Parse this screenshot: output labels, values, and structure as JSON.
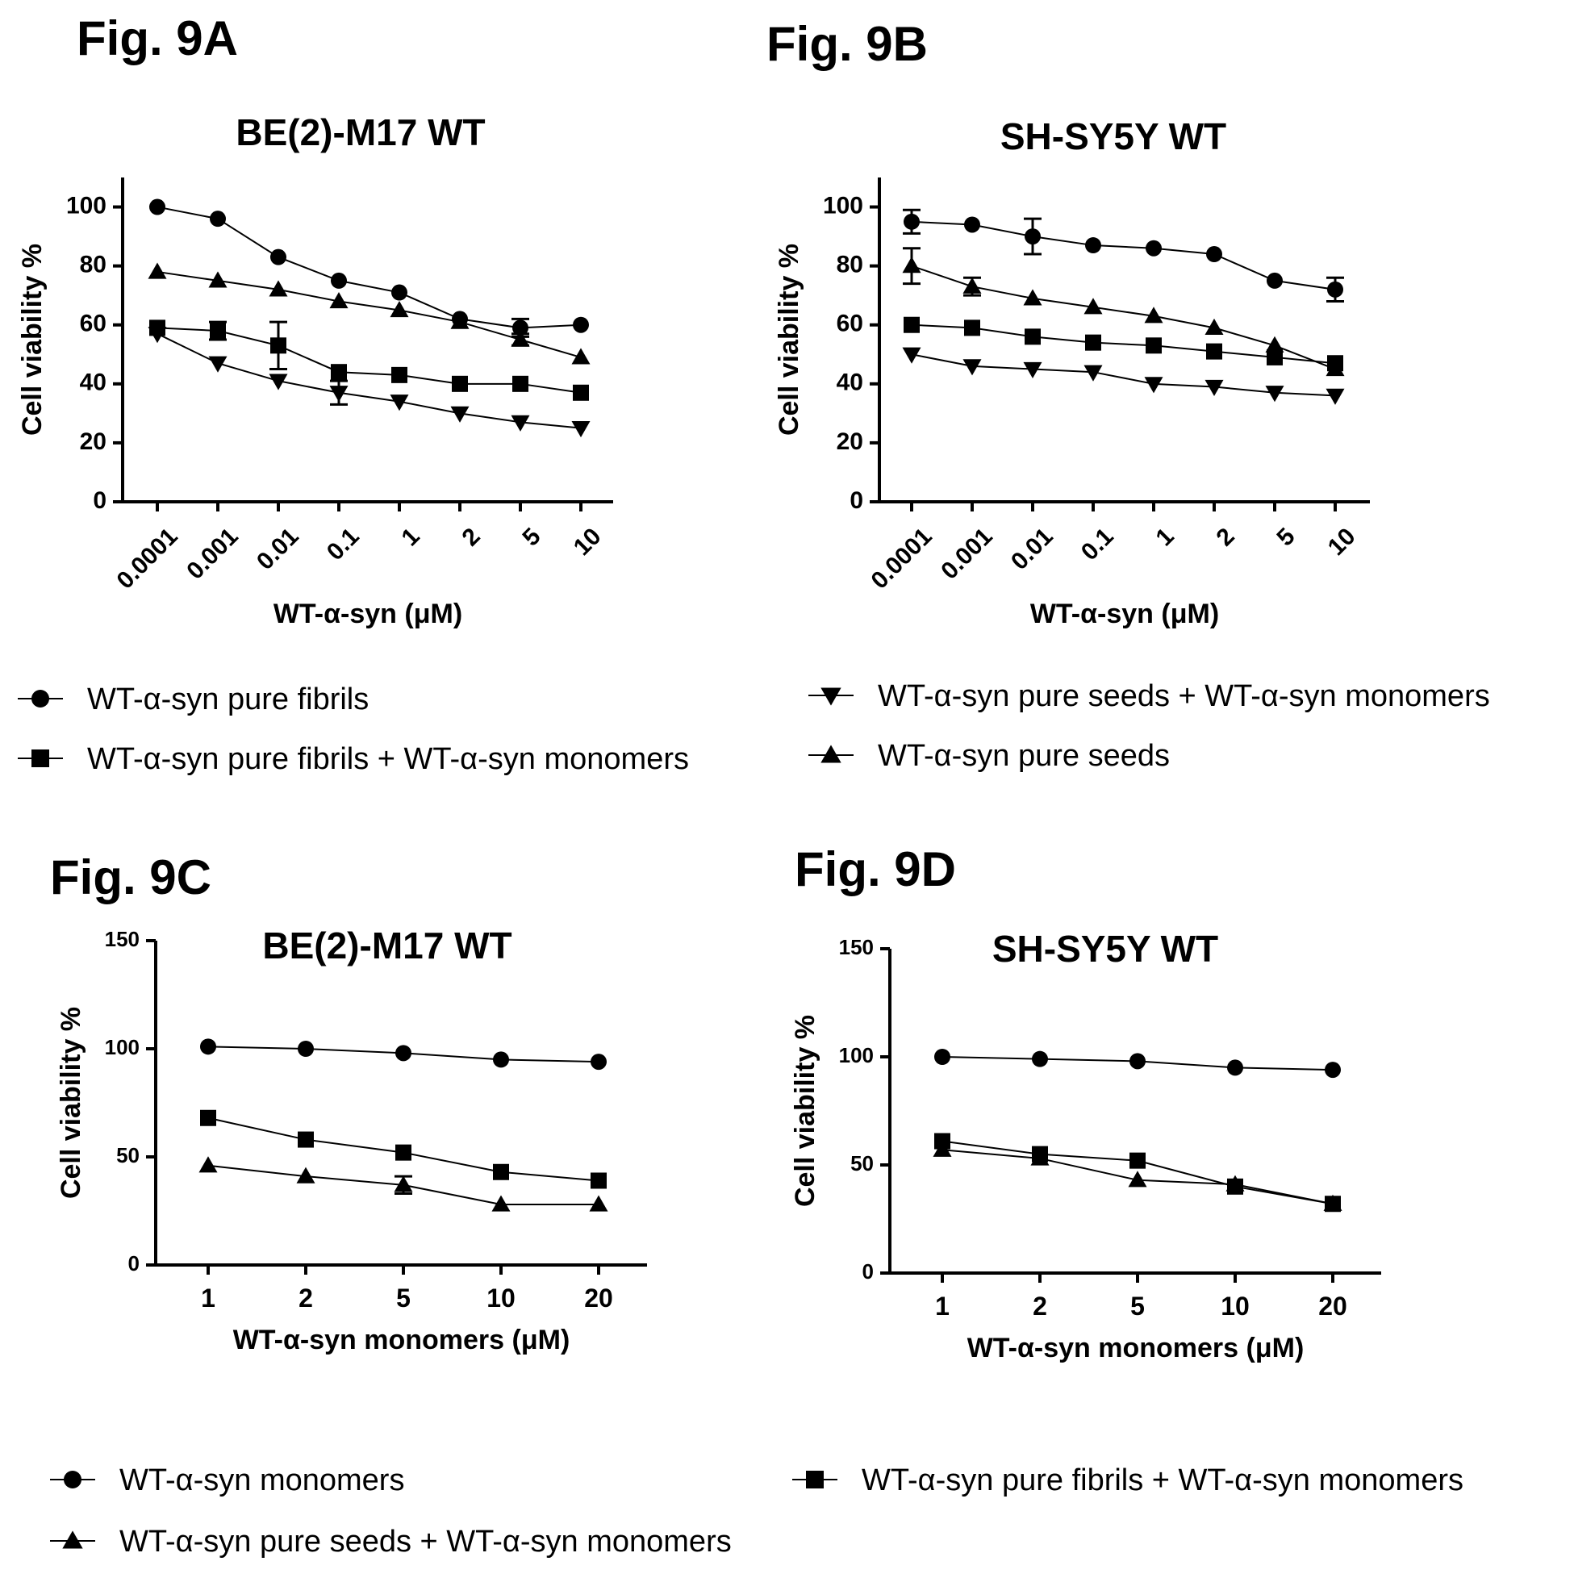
{
  "figures": [
    {
      "label": "Fig. 9A"
    },
    {
      "label": "Fig. 9B"
    },
    {
      "label": "Fig. 9C"
    },
    {
      "label": "Fig. 9D"
    }
  ],
  "legends": {
    "top": [
      {
        "marker": "circle",
        "text": "WT-α-syn pure fibrils"
      },
      {
        "marker": "square",
        "text": "WT-α-syn pure fibrils + WT-α-syn monomers"
      },
      {
        "marker": "triangle-down",
        "text": "WT-α-syn pure seeds + WT-α-syn monomers"
      },
      {
        "marker": "triangle-up",
        "text": "WT-α-syn pure seeds"
      }
    ],
    "bottom": [
      {
        "marker": "circle",
        "text": "WT-α-syn monomers"
      },
      {
        "marker": "triangle-up",
        "text": "WT-α-syn pure seeds + WT-α-syn monomers"
      },
      {
        "marker": "square",
        "text": "WT-α-syn pure fibrils + WT-α-syn monomers"
      }
    ]
  },
  "chart_data": [
    {
      "type": "line",
      "title": "BE(2)-M17 WT",
      "xlabel": "WT-α-syn (μM)",
      "ylabel": "Cell viability %",
      "categories": [
        "0.0001",
        "0.001",
        "0.01",
        "0.1",
        "1",
        "2",
        "5",
        "10"
      ],
      "ylim": [
        0,
        110
      ],
      "yticks": [
        0,
        20,
        40,
        60,
        80,
        100
      ],
      "x_tick_rotation": -45,
      "series": [
        {
          "marker": "circle",
          "values": [
            100,
            96,
            83,
            75,
            71,
            62,
            59,
            60
          ],
          "errors": [
            0,
            0,
            0,
            0,
            0,
            0,
            3,
            0
          ]
        },
        {
          "marker": "triangle-up",
          "values": [
            78,
            75,
            72,
            68,
            65,
            61,
            55,
            49
          ],
          "errors": [
            0,
            0,
            0,
            0,
            0,
            0,
            2,
            0
          ]
        },
        {
          "marker": "square",
          "values": [
            59,
            58,
            53,
            44,
            43,
            40,
            40,
            37
          ],
          "errors": [
            0,
            3,
            8,
            0,
            0,
            0,
            0,
            0
          ]
        },
        {
          "marker": "triangle-down",
          "values": [
            57,
            47,
            41,
            37,
            34,
            30,
            27,
            25
          ],
          "errors": [
            0,
            0,
            0,
            4,
            0,
            0,
            0,
            0
          ]
        }
      ]
    },
    {
      "type": "line",
      "title": "SH-SY5Y WT",
      "xlabel": "WT-α-syn (μM)",
      "ylabel": "Cell viability %",
      "categories": [
        "0.0001",
        "0.001",
        "0.01",
        "0.1",
        "1",
        "2",
        "5",
        "10"
      ],
      "ylim": [
        0,
        110
      ],
      "yticks": [
        0,
        20,
        40,
        60,
        80,
        100
      ],
      "x_tick_rotation": -45,
      "series": [
        {
          "marker": "circle",
          "values": [
            95,
            94,
            90,
            87,
            86,
            84,
            75,
            72
          ],
          "errors": [
            4,
            0,
            6,
            0,
            0,
            0,
            0,
            4
          ]
        },
        {
          "marker": "triangle-up",
          "values": [
            80,
            73,
            69,
            66,
            63,
            59,
            53,
            45
          ],
          "errors": [
            6,
            3,
            0,
            0,
            0,
            0,
            0,
            0
          ]
        },
        {
          "marker": "square",
          "values": [
            60,
            59,
            56,
            54,
            53,
            51,
            49,
            47
          ],
          "errors": [
            0,
            0,
            0,
            0,
            0,
            0,
            0,
            0
          ]
        },
        {
          "marker": "triangle-down",
          "values": [
            50,
            46,
            45,
            44,
            40,
            39,
            37,
            36
          ],
          "errors": [
            0,
            0,
            0,
            0,
            0,
            0,
            0,
            0
          ]
        }
      ]
    },
    {
      "type": "line",
      "title": "BE(2)-M17 WT",
      "xlabel": "WT-α-syn monomers (μM)",
      "ylabel": "Cell viability %",
      "categories": [
        "1",
        "2",
        "5",
        "10",
        "20"
      ],
      "ylim": [
        0,
        150
      ],
      "yticks": [
        0,
        50,
        100,
        150
      ],
      "x_tick_rotation": 0,
      "series": [
        {
          "marker": "circle",
          "values": [
            101,
            100,
            98,
            95,
            94
          ],
          "errors": [
            0,
            0,
            0,
            0,
            0
          ]
        },
        {
          "marker": "square",
          "values": [
            68,
            58,
            52,
            43,
            39
          ],
          "errors": [
            0,
            0,
            0,
            0,
            0
          ]
        },
        {
          "marker": "triangle-up",
          "values": [
            46,
            41,
            37,
            28,
            28
          ],
          "errors": [
            0,
            0,
            4,
            0,
            0
          ]
        }
      ]
    },
    {
      "type": "line",
      "title": "SH-SY5Y WT",
      "xlabel": "WT-α-syn monomers (μM)",
      "ylabel": "Cell viability %",
      "categories": [
        "1",
        "2",
        "5",
        "10",
        "20"
      ],
      "ylim": [
        0,
        150
      ],
      "yticks": [
        0,
        50,
        100,
        150
      ],
      "x_tick_rotation": 0,
      "series": [
        {
          "marker": "circle",
          "values": [
            100,
            99,
            98,
            95,
            94
          ],
          "errors": [
            0,
            0,
            0,
            0,
            0
          ]
        },
        {
          "marker": "square",
          "values": [
            61,
            55,
            52,
            40,
            32
          ],
          "errors": [
            0,
            0,
            0,
            0,
            0
          ]
        },
        {
          "marker": "triangle-up",
          "values": [
            57,
            53,
            43,
            41,
            32
          ],
          "errors": [
            0,
            0,
            0,
            0,
            0
          ]
        }
      ]
    }
  ]
}
